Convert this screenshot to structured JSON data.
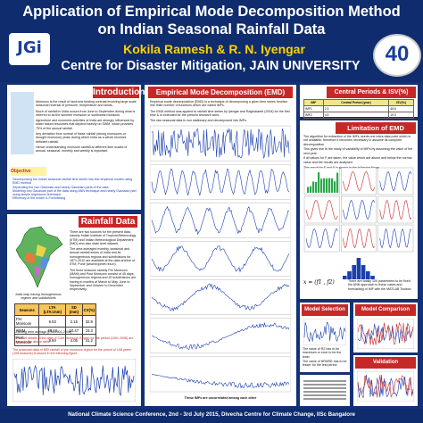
{
  "header": {
    "title_line1": "Application of Empirical Mode Decomposition Method",
    "title_line2": "on Indian Seasonal Rainfall Data",
    "authors": "Kokila Ramesh & R. N. Iyengar",
    "centre": "Centre for Disaster Mitigation, JAIN UNIVERSITY",
    "logo_text": "JGi",
    "badge": "40"
  },
  "sections": {
    "introduction": "Introduction",
    "objective": "Objective",
    "rainfall_data": "Rainfall Data",
    "emd": "Empirical Mode Decomposition (EMD)",
    "central_periods": "Central Periods & ISV(%)",
    "limitation": "Limitation of EMD",
    "model_selection": "Model Selection",
    "model_comparison": "Model Comparison",
    "validation": "Validation"
  },
  "intro_bullets": [
    "Monsoon is the result of land-sea heating contrast involving large scale seasonal reversal of pressure, temperature and winds.",
    "Much of rainfall in India occurs from June to September during what is referred to as the summer monsoon or southwest monsoon.",
    "Agriculture and economic activities of India are strongly influenced by water based resources that depend heavily on SWM, which provides 75% of the annual rainfall.",
    "Any deviation from normal of these rainfall (strong monsoons or drought monsoon) years during which India as a whole receives deficient rainfall.",
    "Hence understanding monsoon rainfall at different time scales of annual, seasonal, monthly and weekly is important."
  ],
  "objectives": [
    "Decomposing the Indian seasonal rainfall time series into few empirical modes using EMD method",
    "Separating the non Gaussian and nearly Gaussian parts of the data",
    "Modeling non Gaussian part of the data using ANN technique and nearly Gaussian part using simple regression technique",
    "Efficiency of the model & Forecasting"
  ],
  "rainfall_text": [
    "There are two sources for the present data, namely Indian Institute of Tropical Meteorology (IITM) and Indian Meteorological Department (IMD) who also state level dataset.",
    "The area averaged monthly, seasonal and annual rainfall series of India and its homogeneous regions and subdivisions for 1871-2012 are available at the data archive of IITM, Pune (www.tropmet.res.in).",
    "The three seasons namely Pre Monsoon (MAM) and Post Monsoon consist of 45 days, homogeneous regions and 30 subdivisions are having in months of March to May, June to September and October to December respectively."
  ],
  "table_caption": "The brief details of the data of Core Monsoon Region for the period (1901-2008) are shown in the above table",
  "map_caption": "India map having homogeneous regions and subdivisions",
  "stats_table": {
    "headers": [
      "Seasons",
      "LTA (LTA=mm)",
      "SD (mm)",
      "CV(%)"
    ],
    "rows": [
      [
        "Pre Monsoon",
        "6.53",
        "2.15",
        "32.9"
      ],
      [
        "SWM",
        "68.44",
        "10.47",
        "15.3"
      ],
      [
        "Post Monsoon",
        "9.84",
        "4.05",
        "41.2"
      ]
    ],
    "note": "LTA-long term average (LTA-1901-2008)"
  },
  "seasonal_caption": "The seasonal data of IMD rainfall of pre monsoon region for the period of 108 years (108 seasons) is shown in the following figure",
  "emd_text": [
    "Empirical mode decomposition (EMD) is a technique of decomposing a given time series function into finite number of functions which are called IMFs.",
    "The EMD method was applied to rainfall time series by Iyengar and Raghukanth (2004) for the first time & is extended for the present research work.",
    "The raw seasonal data is non stationary and decomposed into IMFs."
  ],
  "emd_footer": "These IMFs are uncorrelated among each other",
  "central_period_table": {
    "headers": [
      "IMF",
      "Central Period (year)",
      "ISV(%)"
    ],
    "rows": [
      [
        "IMF1",
        "2.3",
        "45.6"
      ],
      [
        "IMF2",
        "4.9",
        "19.3"
      ],
      [
        "IMF3",
        "9.6",
        "14.9"
      ],
      [
        "IMF4",
        "22.6",
        "8.2"
      ],
      [
        "IMF5",
        "55.0",
        "4.1"
      ],
      [
        "Residue",
        "",
        "7.9"
      ]
    ]
  },
  "limitation_text": [
    "The algorithm for extraction of the IMFs needs one extra data point which is not available, therefore it becomes necessary to assume its complete decomposition",
    "This gives rise to the study of variability of IMFs by assuming the value of the next year.",
    "If all values for F are taken, the value which are above and below the normal value and the results are analysed.",
    "This result for F and F is shown in the following figure"
  ],
  "formula": "x = (f1 , f2)",
  "limitation_caption": "There are totally 100 parameters to be fixed the ANN approach to these cases and forecasting of IMF with the MATLAB Toolbox",
  "model_selection_text": [
    "The value of R2 has to be maximum or error to be the least",
    "The value of NRMSE has to be lesser for the test period"
  ],
  "footer": "National Climate Science Conference, 2nd - 3rd July 2015, Divecha Centre for Climate Change, IISc Bangalore",
  "colors": {
    "background": "#133275",
    "section_title": "#c62828",
    "title_accent": "#ffd200",
    "series": "#1a3fb0"
  }
}
